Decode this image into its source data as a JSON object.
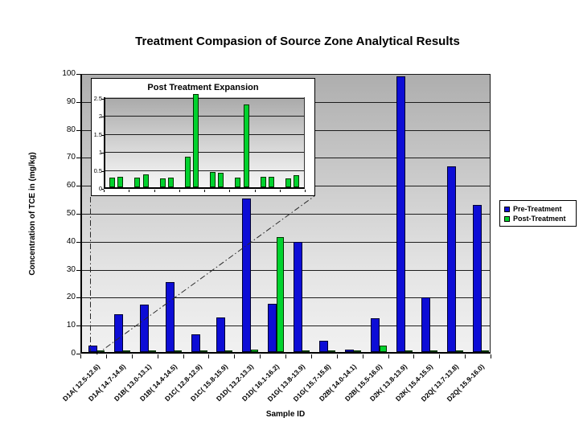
{
  "title": "Treatment Compasion of Source Zone Analytical Results",
  "axes": {
    "x_title": "Sample ID",
    "y_title": "Concentration of TCE in (mg/kg)",
    "y_tick_labels": [
      "0",
      "10",
      "20",
      "30",
      "40",
      "50",
      "60",
      "70",
      "80",
      "90",
      "100"
    ]
  },
  "legend": {
    "items": [
      {
        "label": "Pre-Treatment",
        "color": "#0d0dd6"
      },
      {
        "label": "Post-Treatment",
        "color": "#00d22e"
      }
    ]
  },
  "inset": {
    "title": "Post Treatment Expansion",
    "y_tick_labels": [
      "0",
      "0.5",
      "1",
      "1.5",
      "2",
      "2.5"
    ]
  },
  "chart_data": [
    {
      "type": "bar",
      "title": "Treatment Compasion of Source Zone Analytical Results",
      "xlabel": "Sample ID",
      "ylabel": "Concentration of TCE in (mg/kg)",
      "ylim": [
        0,
        100
      ],
      "grid": true,
      "grid_interval": 10,
      "legend_position": "right",
      "plot_background": "gray-gradient",
      "categories": [
        "D1A( 12.5-12.6)",
        "D1A( 14.7-14.8)",
        "D1B( 13.0-13.1)",
        "D1B( 14.4-14.5)",
        "D1C( 12.8-12.9)",
        "D1C( 15.8-15.9)",
        "D1D( 13.2-13.3)",
        "D1D( 16.1-16.2)",
        "D1G( 13.8-13.9)",
        "D1G( 15.7-15.8)",
        "D2B( 14.0-14.1)",
        "D2B( 15.5-16.0)",
        "D2K( 13.8-13.9)",
        "D2K( 15.4-15.5)",
        "D2Q( 13.7-13.8)",
        "D2Q( 15.9-16.0)"
      ],
      "series": [
        {
          "name": "Pre-Treatment",
          "color": "#0d0dd6",
          "values": [
            2.4,
            13.5,
            17,
            25,
            6.3,
            12.3,
            55,
            17.3,
            39.5,
            4,
            1,
            12,
            98.5,
            19.5,
            66.5,
            52.5
          ]
        },
        {
          "name": "Post-Treatment",
          "color": "#00d22e",
          "values": [
            0.27,
            0.3,
            0.27,
            0.35,
            0.25,
            0.27,
            0.85,
            41,
            0.42,
            0.41,
            0.27,
            2.3,
            0.28,
            0.28,
            0.25,
            0.33
          ]
        }
      ]
    },
    {
      "type": "bar",
      "title": "Post Treatment Expansion",
      "ylim": [
        0,
        2.5
      ],
      "grid": true,
      "grid_interval": 0.5,
      "bars_clipped_at_ylim": true,
      "categories": [
        "D1A( 12.5-12.6)",
        "D1A( 14.7-14.8)",
        "D1B( 13.0-13.1)",
        "D1B( 14.4-14.5)",
        "D1C( 12.8-12.9)",
        "D1C( 15.8-15.9)",
        "D1D( 13.2-13.3)",
        "D1D( 16.1-16.2)",
        "D1G( 13.8-13.9)",
        "D1G( 15.7-15.8)",
        "D2B( 14.0-14.1)",
        "D2B( 15.5-16.0)",
        "D2K( 13.8-13.9)",
        "D2K( 15.4-15.5)",
        "D2Q( 13.7-13.8)",
        "D2Q( 15.9-16.0)"
      ],
      "series": [
        {
          "name": "Post-Treatment",
          "color": "#00d22e",
          "values": [
            0.27,
            0.3,
            0.27,
            0.35,
            0.25,
            0.27,
            0.85,
            41,
            0.42,
            0.41,
            0.27,
            2.3,
            0.28,
            0.28,
            0.25,
            0.33
          ]
        }
      ]
    }
  ]
}
